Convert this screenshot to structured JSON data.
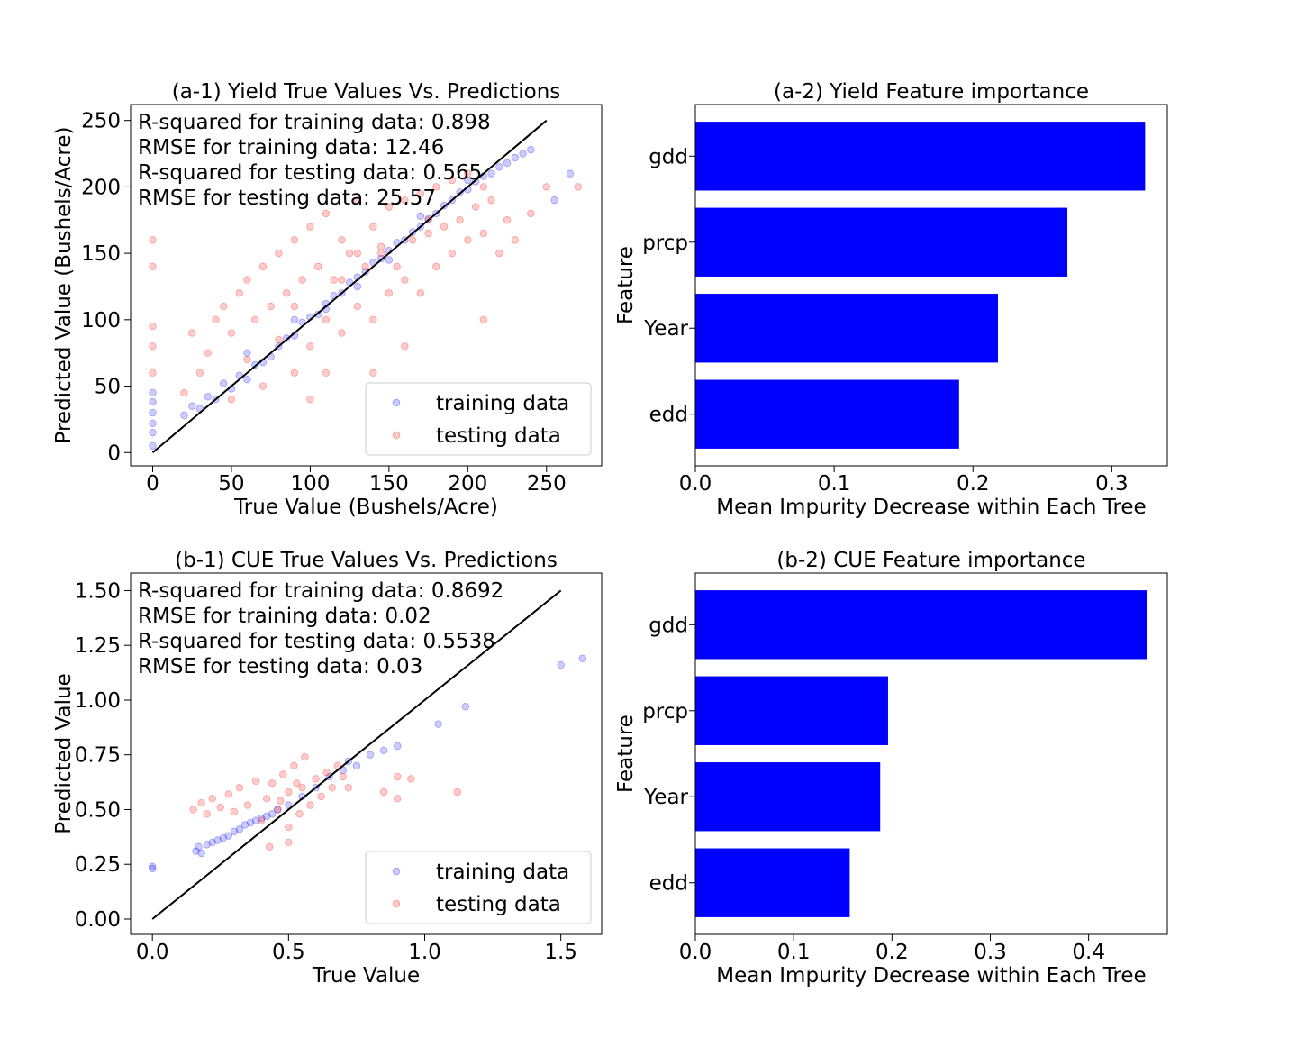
{
  "chart_data": [
    {
      "type": "scatter",
      "title": "(a-1) Yield True Values Vs. Predictions",
      "xlabel": "True Value (Bushels/Acre)",
      "ylabel": "Predicted Value (Bushels/Acre)",
      "xlim": [
        -14,
        285
      ],
      "ylim": [
        -10,
        262
      ],
      "xticks": [
        0,
        50,
        100,
        150,
        200,
        250
      ],
      "xtick_labels": [
        "0",
        "50",
        "100",
        "150",
        "200",
        "250"
      ],
      "yticks": [
        0,
        50,
        100,
        150,
        200,
        250
      ],
      "ytick_labels": [
        "0",
        "50",
        "100",
        "150",
        "200",
        "250"
      ],
      "grid": false,
      "legend_position": "lower-right",
      "annotations": [
        "R-squared for training data: 0.898",
        "RMSE for training data: 12.46",
        "R-squared for testing data: 0.565",
        "RMSE for testing data: 25.57"
      ],
      "reference_line": {
        "x": [
          0,
          250
        ],
        "y": [
          0,
          250
        ],
        "color": "#000000"
      },
      "series": [
        {
          "name": "training data",
          "color": "#0000ff",
          "alpha": 0.2,
          "points": [
            [
              0,
              5
            ],
            [
              0,
              15
            ],
            [
              0,
              22
            ],
            [
              0,
              30
            ],
            [
              0,
              38
            ],
            [
              0,
              45
            ],
            [
              20,
              28
            ],
            [
              25,
              35
            ],
            [
              30,
              33
            ],
            [
              35,
              42
            ],
            [
              40,
              40
            ],
            [
              45,
              52
            ],
            [
              50,
              48
            ],
            [
              55,
              58
            ],
            [
              60,
              55
            ],
            [
              65,
              66
            ],
            [
              70,
              68
            ],
            [
              75,
              72
            ],
            [
              80,
              80
            ],
            [
              85,
              86
            ],
            [
              90,
              88
            ],
            [
              95,
              98
            ],
            [
              100,
              102
            ],
            [
              105,
              104
            ],
            [
              110,
              112
            ],
            [
              115,
              118
            ],
            [
              120,
              120
            ],
            [
              125,
              128
            ],
            [
              130,
              132
            ],
            [
              135,
              136
            ],
            [
              140,
              143
            ],
            [
              145,
              146
            ],
            [
              150,
              152
            ],
            [
              155,
              158
            ],
            [
              160,
              160
            ],
            [
              165,
              166
            ],
            [
              170,
              170
            ],
            [
              175,
              176
            ],
            [
              180,
              180
            ],
            [
              185,
              186
            ],
            [
              190,
              190
            ],
            [
              195,
              196
            ],
            [
              200,
              198
            ],
            [
              205,
              204
            ],
            [
              210,
              208
            ],
            [
              215,
              210
            ],
            [
              220,
              215
            ],
            [
              225,
              218
            ],
            [
              230,
              222
            ],
            [
              235,
              225
            ],
            [
              240,
              228
            ],
            [
              255,
              190
            ],
            [
              265,
              210
            ],
            [
              60,
              75
            ],
            [
              90,
              100
            ],
            [
              130,
              125
            ],
            [
              170,
              178
            ],
            [
              200,
              205
            ],
            [
              110,
              108
            ],
            [
              150,
              145
            ]
          ]
        },
        {
          "name": "testing data",
          "color": "#ff0000",
          "alpha": 0.2,
          "points": [
            [
              0,
              60
            ],
            [
              0,
              80
            ],
            [
              0,
              95
            ],
            [
              0,
              140
            ],
            [
              0,
              160
            ],
            [
              20,
              45
            ],
            [
              25,
              90
            ],
            [
              30,
              60
            ],
            [
              35,
              75
            ],
            [
              40,
              100
            ],
            [
              45,
              110
            ],
            [
              50,
              40
            ],
            [
              50,
              90
            ],
            [
              55,
              120
            ],
            [
              60,
              70
            ],
            [
              60,
              130
            ],
            [
              65,
              100
            ],
            [
              70,
              50
            ],
            [
              70,
              140
            ],
            [
              75,
              110
            ],
            [
              80,
              85
            ],
            [
              80,
              150
            ],
            [
              85,
              120
            ],
            [
              90,
              60
            ],
            [
              90,
              160
            ],
            [
              95,
              130
            ],
            [
              100,
              80
            ],
            [
              100,
              170
            ],
            [
              105,
              140
            ],
            [
              110,
              100
            ],
            [
              110,
              180
            ],
            [
              115,
              130
            ],
            [
              120,
              90
            ],
            [
              120,
              160
            ],
            [
              125,
              150
            ],
            [
              130,
              110
            ],
            [
              130,
              190
            ],
            [
              135,
              140
            ],
            [
              140,
              100
            ],
            [
              140,
              170
            ],
            [
              145,
              155
            ],
            [
              150,
              120
            ],
            [
              150,
              185
            ],
            [
              155,
              140
            ],
            [
              160,
              130
            ],
            [
              160,
              190
            ],
            [
              165,
              160
            ],
            [
              170,
              120
            ],
            [
              170,
              195
            ],
            [
              175,
              165
            ],
            [
              180,
              140
            ],
            [
              180,
              200
            ],
            [
              185,
              170
            ],
            [
              190,
              150
            ],
            [
              190,
              205
            ],
            [
              195,
              175
            ],
            [
              200,
              160
            ],
            [
              200,
              210
            ],
            [
              205,
              185
            ],
            [
              210,
              165
            ],
            [
              210,
              200
            ],
            [
              215,
              190
            ],
            [
              220,
              150
            ],
            [
              225,
              175
            ],
            [
              230,
              160
            ],
            [
              240,
              180
            ],
            [
              250,
              200
            ],
            [
              270,
              200
            ],
            [
              110,
              60
            ],
            [
              140,
              60
            ],
            [
              160,
              80
            ],
            [
              210,
              100
            ],
            [
              100,
              40
            ],
            [
              120,
              130
            ],
            [
              145,
              150
            ],
            [
              175,
              175
            ],
            [
              90,
              110
            ],
            [
              130,
              150
            ]
          ]
        }
      ]
    },
    {
      "type": "bar",
      "orientation": "horizontal",
      "title": "(a-2) Yield Feature importance",
      "xlabel": "Mean Impurity Decrease within Each Tree",
      "ylabel": "Feature",
      "categories": [
        "gdd",
        "prcp",
        "Year",
        "edd"
      ],
      "values": [
        0.324,
        0.268,
        0.218,
        0.19
      ],
      "xlim": [
        0,
        0.34
      ],
      "xticks": [
        0,
        0.1,
        0.2,
        0.3
      ],
      "xtick_labels": [
        "0.0",
        "0.1",
        "0.2",
        "0.3"
      ],
      "color": "#0000ff",
      "grid": false
    },
    {
      "type": "scatter",
      "title": "(b-1) CUE True Values Vs. Predictions",
      "xlabel": "True Value",
      "ylabel": "Predicted Value",
      "xlim": [
        -0.08,
        1.65
      ],
      "ylim": [
        -0.07,
        1.58
      ],
      "xticks": [
        0,
        0.5,
        1.0,
        1.5
      ],
      "xtick_labels": [
        "0.0",
        "0.5",
        "1.0",
        "1.5"
      ],
      "yticks": [
        0,
        0.25,
        0.5,
        0.75,
        1.0,
        1.25,
        1.5
      ],
      "ytick_labels": [
        "0.00",
        "0.25",
        "0.50",
        "0.75",
        "1.00",
        "1.25",
        "1.50"
      ],
      "grid": false,
      "legend_position": "lower-right",
      "annotations": [
        "R-squared for training data: 0.8692",
        "RMSE for training data: 0.02",
        "R-squared for testing data: 0.5538",
        "RMSE for testing data: 0.03"
      ],
      "reference_line": {
        "x": [
          0,
          1.5
        ],
        "y": [
          0,
          1.5
        ],
        "color": "#000000"
      },
      "series": [
        {
          "name": "training data",
          "color": "#0000ff",
          "alpha": 0.2,
          "points": [
            [
              0.0,
              0.24
            ],
            [
              0.0,
              0.23
            ],
            [
              0.16,
              0.31
            ],
            [
              0.17,
              0.33
            ],
            [
              0.18,
              0.3
            ],
            [
              0.2,
              0.34
            ],
            [
              0.22,
              0.35
            ],
            [
              0.24,
              0.36
            ],
            [
              0.26,
              0.37
            ],
            [
              0.28,
              0.38
            ],
            [
              0.3,
              0.4
            ],
            [
              0.32,
              0.41
            ],
            [
              0.34,
              0.43
            ],
            [
              0.36,
              0.44
            ],
            [
              0.38,
              0.45
            ],
            [
              0.4,
              0.46
            ],
            [
              0.42,
              0.47
            ],
            [
              0.44,
              0.48
            ],
            [
              0.46,
              0.5
            ],
            [
              0.5,
              0.52
            ],
            [
              0.55,
              0.56
            ],
            [
              0.6,
              0.6
            ],
            [
              0.65,
              0.65
            ],
            [
              0.7,
              0.68
            ],
            [
              0.72,
              0.72
            ],
            [
              0.75,
              0.7
            ],
            [
              0.8,
              0.75
            ],
            [
              0.85,
              0.77
            ],
            [
              0.9,
              0.79
            ],
            [
              1.05,
              0.89
            ],
            [
              1.15,
              0.97
            ],
            [
              1.5,
              1.16
            ],
            [
              1.58,
              1.19
            ]
          ]
        },
        {
          "name": "testing data",
          "color": "#ff0000",
          "alpha": 0.2,
          "points": [
            [
              0.15,
              0.5
            ],
            [
              0.18,
              0.53
            ],
            [
              0.2,
              0.48
            ],
            [
              0.22,
              0.55
            ],
            [
              0.25,
              0.51
            ],
            [
              0.28,
              0.57
            ],
            [
              0.3,
              0.49
            ],
            [
              0.32,
              0.6
            ],
            [
              0.35,
              0.52
            ],
            [
              0.38,
              0.63
            ],
            [
              0.4,
              0.45
            ],
            [
              0.42,
              0.55
            ],
            [
              0.44,
              0.62
            ],
            [
              0.46,
              0.5
            ],
            [
              0.48,
              0.66
            ],
            [
              0.5,
              0.42
            ],
            [
              0.5,
              0.58
            ],
            [
              0.52,
              0.7
            ],
            [
              0.54,
              0.48
            ],
            [
              0.55,
              0.6
            ],
            [
              0.56,
              0.74
            ],
            [
              0.58,
              0.52
            ],
            [
              0.6,
              0.64
            ],
            [
              0.62,
              0.56
            ],
            [
              0.64,
              0.67
            ],
            [
              0.66,
              0.6
            ],
            [
              0.68,
              0.7
            ],
            [
              0.7,
              0.65
            ],
            [
              0.72,
              0.6
            ],
            [
              0.85,
              0.58
            ],
            [
              0.9,
              0.55
            ],
            [
              0.9,
              0.65
            ],
            [
              0.95,
              0.64
            ],
            [
              1.12,
              0.58
            ],
            [
              0.43,
              0.33
            ],
            [
              0.5,
              0.35
            ],
            [
              0.53,
              0.62
            ],
            [
              0.47,
              0.54
            ]
          ]
        }
      ]
    },
    {
      "type": "bar",
      "orientation": "horizontal",
      "title": "(b-2) CUE Feature importance",
      "xlabel": "Mean Impurity Decrease within Each Tree",
      "ylabel": "Feature",
      "categories": [
        "gdd",
        "prcp",
        "Year",
        "edd"
      ],
      "values": [
        0.459,
        0.196,
        0.188,
        0.157
      ],
      "xlim": [
        0,
        0.48
      ],
      "xticks": [
        0,
        0.1,
        0.2,
        0.3,
        0.4
      ],
      "xtick_labels": [
        "0.0",
        "0.1",
        "0.2",
        "0.3",
        "0.4"
      ],
      "color": "#0000ff",
      "grid": false
    }
  ]
}
